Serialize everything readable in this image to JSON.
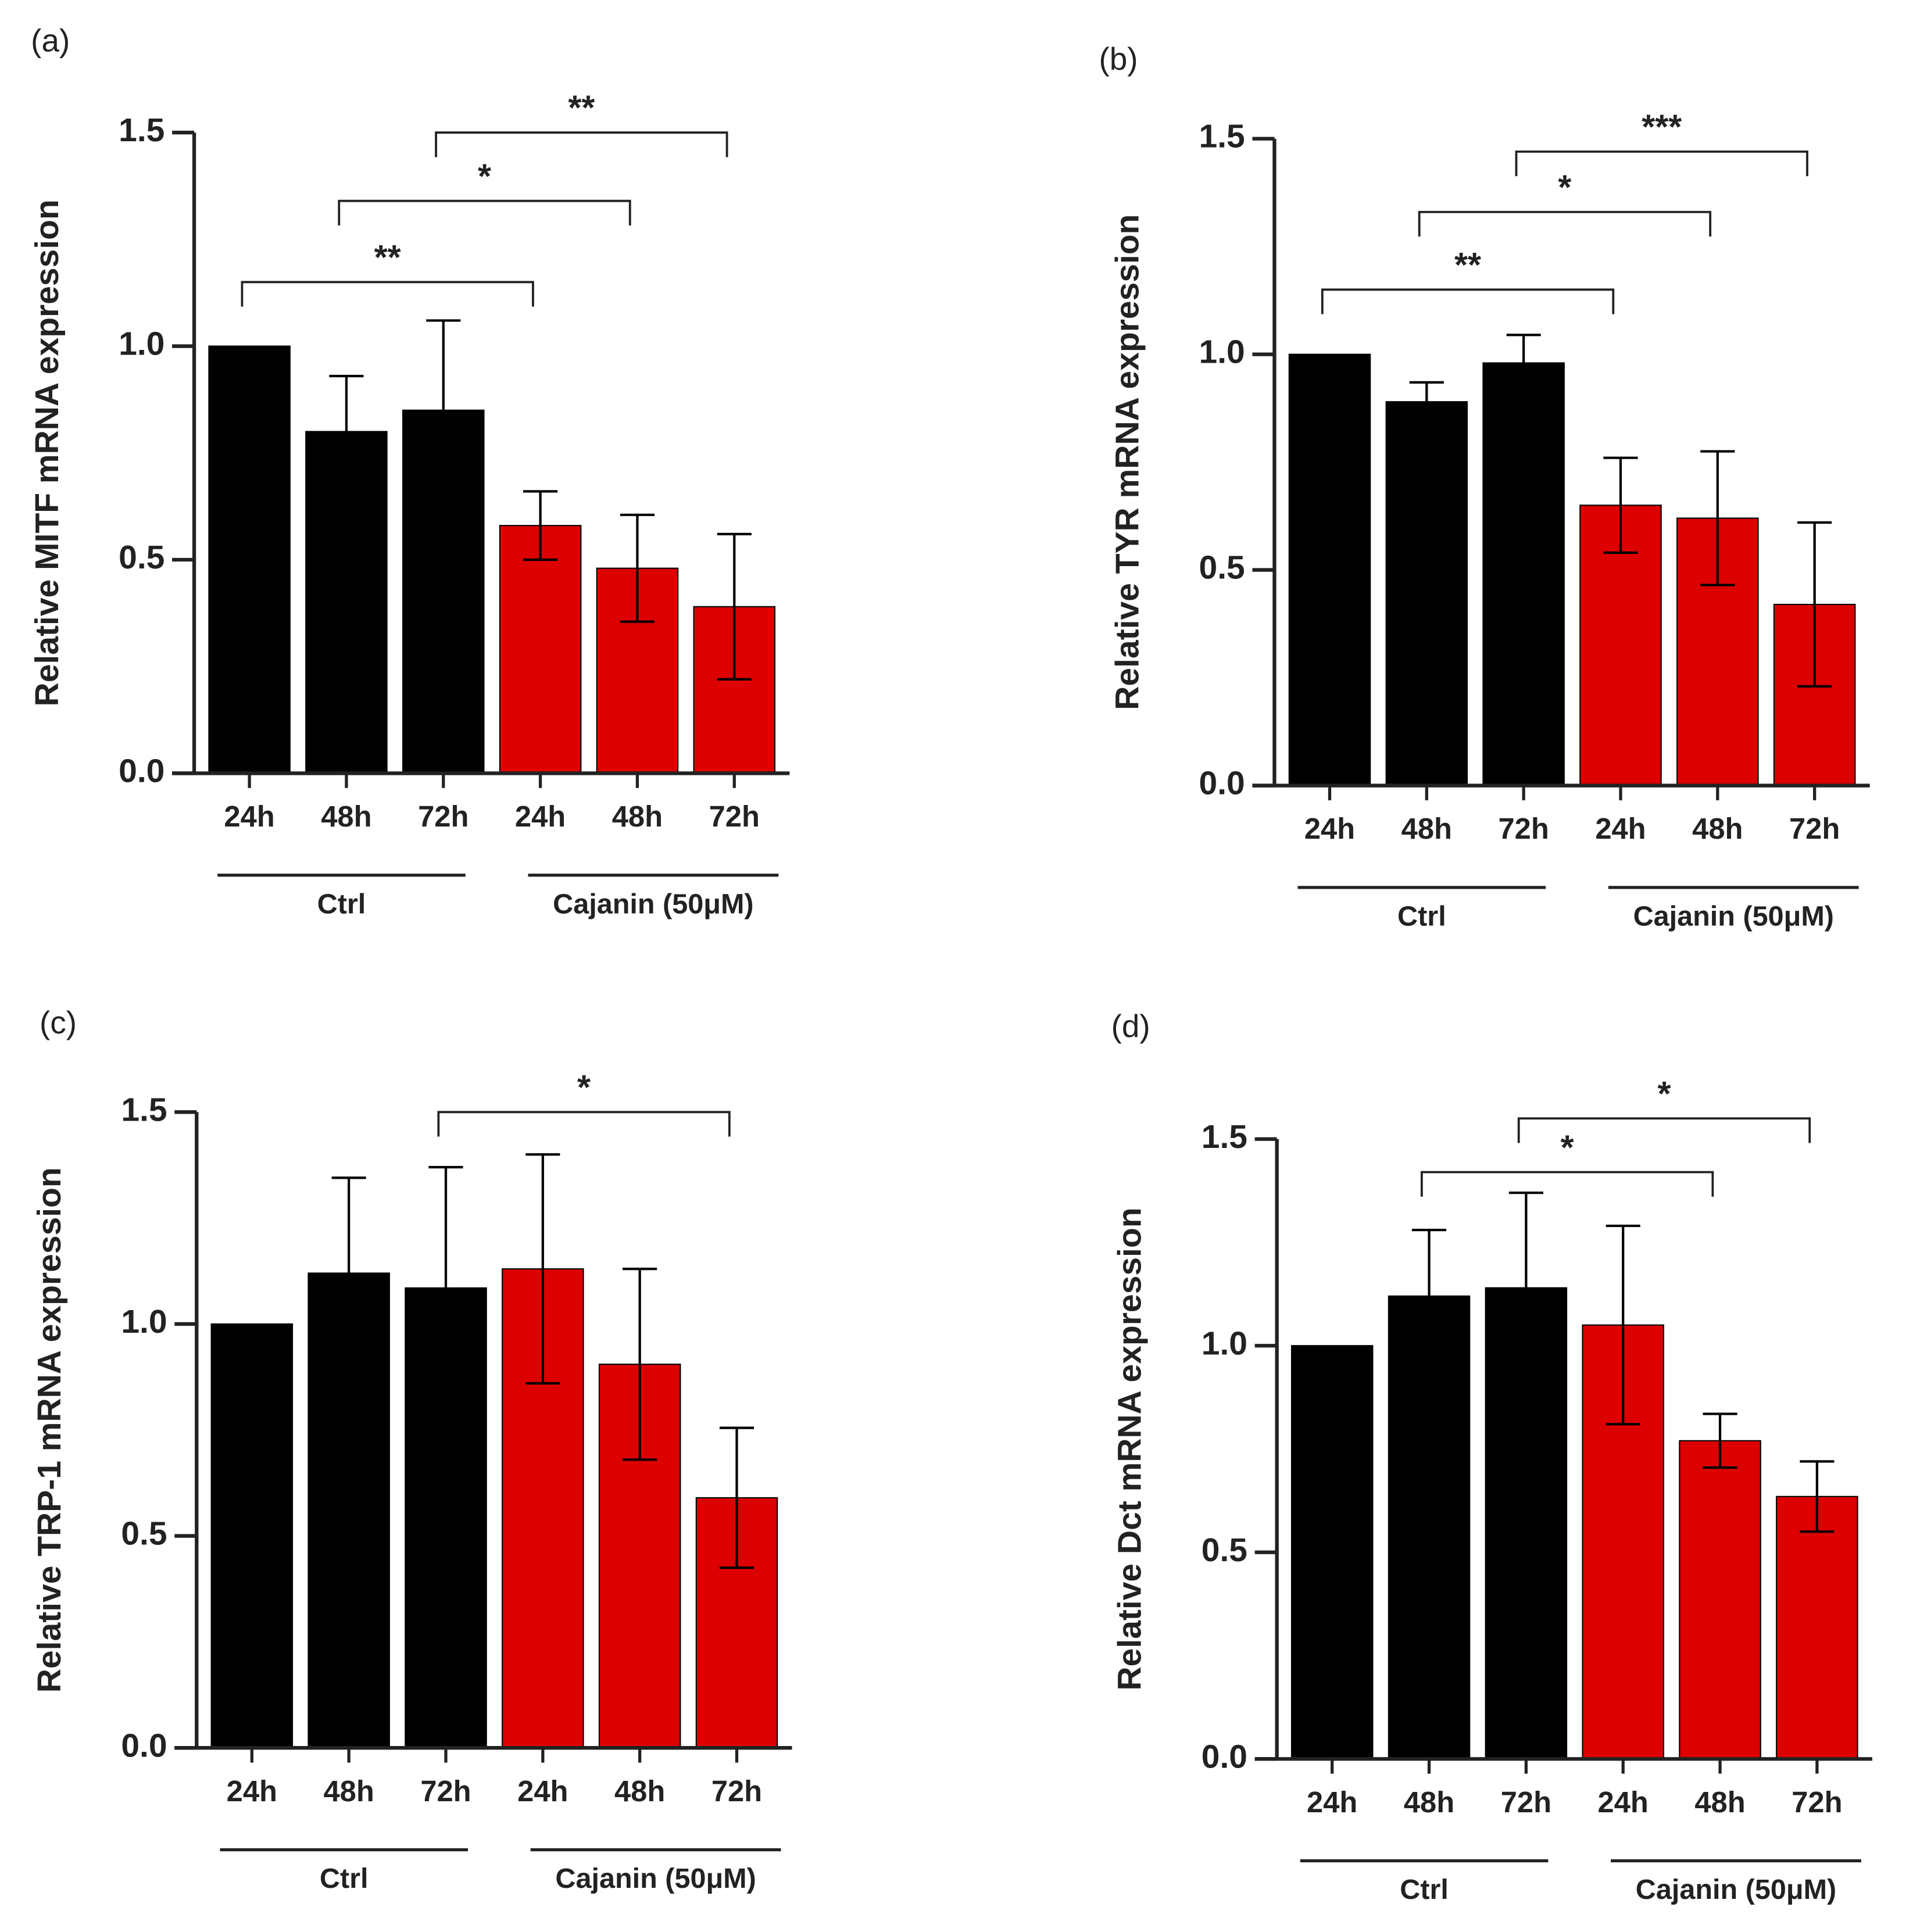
{
  "chart_data": [
    {
      "type": "bar",
      "panel": "(a)",
      "y_label": "Relative MITF mRNA expression",
      "categories": [
        "24h",
        "48h",
        "72h",
        "24h",
        "48h",
        "72h"
      ],
      "groups": [
        {
          "name": "Ctrl",
          "from": 0,
          "to": 2
        },
        {
          "name": "Cajanin (50μM)",
          "from": 3,
          "to": 5
        }
      ],
      "values": [
        1.0,
        0.8,
        0.85,
        0.58,
        0.48,
        0.39
      ],
      "errors": [
        0,
        0.13,
        0.21,
        0.08,
        0.125,
        0.17
      ],
      "colors": [
        "#000000",
        "#000000",
        "#000000",
        "#dd0000",
        "#dd0000",
        "#dd0000"
      ],
      "ylim": [
        0,
        1.5
      ],
      "yticks": [
        {
          "value": 0,
          "label": "0.0"
        },
        0.5,
        {
          "value": 1,
          "label": "1.0"
        },
        1.5
      ],
      "brackets": [
        {
          "from": 0,
          "to": 3,
          "label": "**"
        },
        {
          "from": 1,
          "to": 4,
          "label": "*"
        },
        {
          "from": 2,
          "to": 5,
          "label": "**"
        }
      ]
    },
    {
      "type": "bar",
      "panel": "(b)",
      "y_label": "Relative TYR mRNA expression",
      "categories": [
        "24h",
        "48h",
        "72h",
        "24h",
        "48h",
        "72h"
      ],
      "groups": [
        {
          "name": "Ctrl",
          "from": 0,
          "to": 2
        },
        {
          "name": "Cajanin (50μM)",
          "from": 3,
          "to": 5
        }
      ],
      "values": [
        1.0,
        0.89,
        0.98,
        0.65,
        0.62,
        0.42
      ],
      "errors": [
        0,
        0.045,
        0.065,
        0.11,
        0.155,
        0.19
      ],
      "colors": [
        "#000000",
        "#000000",
        "#000000",
        "#dd0000",
        "#dd0000",
        "#dd0000"
      ],
      "ylim": [
        0,
        1.5
      ],
      "yticks": [
        {
          "value": 0,
          "label": "0.0"
        },
        0.5,
        {
          "value": 1,
          "label": "1.0"
        },
        1.5
      ],
      "brackets": [
        {
          "from": 0,
          "to": 3,
          "label": "**"
        },
        {
          "from": 1,
          "to": 4,
          "label": "*"
        },
        {
          "from": 2,
          "to": 5,
          "label": "***"
        }
      ]
    },
    {
      "type": "bar",
      "panel": "(c)",
      "y_label": "Relative TRP-1 mRNA expression",
      "categories": [
        "24h",
        "48h",
        "72h",
        "24h",
        "48h",
        "72h"
      ],
      "groups": [
        {
          "name": "Ctrl",
          "from": 0,
          "to": 2
        },
        {
          "name": "Cajanin (50μM)",
          "from": 3,
          "to": 5
        }
      ],
      "values": [
        1.0,
        1.12,
        1.085,
        1.13,
        0.905,
        0.59
      ],
      "errors": [
        0,
        0.225,
        0.285,
        0.27,
        0.225,
        0.165
      ],
      "colors": [
        "#000000",
        "#000000",
        "#000000",
        "#dd0000",
        "#dd0000",
        "#dd0000"
      ],
      "ylim": [
        0,
        1.5
      ],
      "yticks": [
        {
          "value": 0,
          "label": "0.0"
        },
        0.5,
        {
          "value": 1,
          "label": "1.0"
        },
        1.5
      ],
      "brackets": [
        {
          "from": 2,
          "to": 5,
          "label": "*"
        }
      ]
    },
    {
      "type": "bar",
      "panel": "(d)",
      "y_label": "Relative Dct mRNA expression",
      "categories": [
        "24h",
        "48h",
        "72h",
        "24h",
        "48h",
        "72h"
      ],
      "groups": [
        {
          "name": "Ctrl",
          "from": 0,
          "to": 2
        },
        {
          "name": "Cajanin (50μM)",
          "from": 3,
          "to": 5
        }
      ],
      "values": [
        1.0,
        1.12,
        1.14,
        1.05,
        0.77,
        0.635
      ],
      "errors": [
        0,
        0.16,
        0.23,
        0.24,
        0.065,
        0.085
      ],
      "colors": [
        "#000000",
        "#000000",
        "#000000",
        "#dd0000",
        "#dd0000",
        "#dd0000"
      ],
      "ylim": [
        0,
        1.5
      ],
      "yticks": [
        {
          "value": 0,
          "label": "0.0"
        },
        0.5,
        {
          "value": 1,
          "label": "1.0"
        },
        1.5
      ],
      "brackets": [
        {
          "from": 1,
          "to": 4,
          "label": "*"
        },
        {
          "from": 2,
          "to": 5,
          "label": "*"
        }
      ]
    }
  ]
}
